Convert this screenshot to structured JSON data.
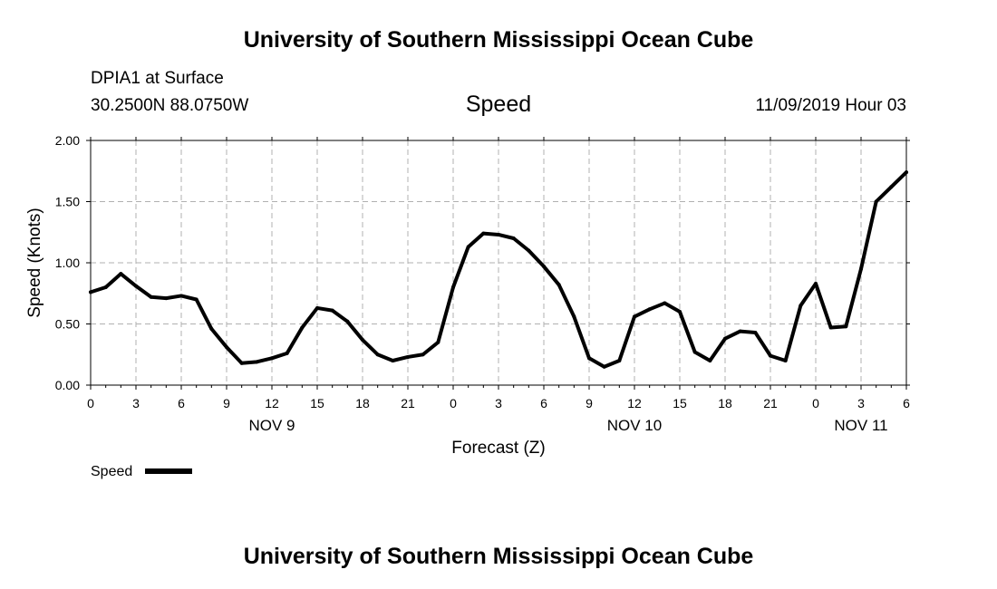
{
  "header": {
    "title": "University of Southern Mississippi Ocean Cube",
    "station": "DPIA1 at Surface",
    "coordinates": "30.2500N 88.0750W",
    "datetime": "11/09/2019 Hour 03"
  },
  "footer": {
    "title": "University of Southern Mississippi Ocean Cube"
  },
  "chart_data": {
    "type": "line",
    "title": "Speed",
    "xlabel": "Forecast (Z)",
    "ylabel": "Speed (Knots)",
    "xlim": [
      0,
      54
    ],
    "ylim": [
      0,
      2
    ],
    "grid": true,
    "x_ticks": [
      {
        "x": 0,
        "label": "0"
      },
      {
        "x": 3,
        "label": "3"
      },
      {
        "x": 6,
        "label": "6"
      },
      {
        "x": 9,
        "label": "9"
      },
      {
        "x": 12,
        "label": "12"
      },
      {
        "x": 15,
        "label": "15"
      },
      {
        "x": 18,
        "label": "18"
      },
      {
        "x": 21,
        "label": "21"
      },
      {
        "x": 24,
        "label": "0"
      },
      {
        "x": 27,
        "label": "3"
      },
      {
        "x": 30,
        "label": "6"
      },
      {
        "x": 33,
        "label": "9"
      },
      {
        "x": 36,
        "label": "12"
      },
      {
        "x": 39,
        "label": "15"
      },
      {
        "x": 42,
        "label": "18"
      },
      {
        "x": 45,
        "label": "21"
      },
      {
        "x": 48,
        "label": "0"
      },
      {
        "x": 51,
        "label": "3"
      },
      {
        "x": 54,
        "label": "6"
      }
    ],
    "y_ticks": [
      {
        "y": 0,
        "label": "0.00"
      },
      {
        "y": 0.5,
        "label": "0.50"
      },
      {
        "y": 1.0,
        "label": "1.00"
      },
      {
        "y": 1.5,
        "label": "1.50"
      },
      {
        "y": 2.0,
        "label": "2.00"
      }
    ],
    "day_labels": [
      {
        "x": 12,
        "label": "NOV 9"
      },
      {
        "x": 36,
        "label": "NOV 10"
      },
      {
        "x": 51,
        "label": "NOV 11"
      }
    ],
    "legend": {
      "label": "Speed",
      "position": "bottom-left"
    },
    "series": [
      {
        "name": "Speed",
        "color": "#000000",
        "x": [
          0,
          1,
          2,
          3,
          4,
          5,
          6,
          7,
          8,
          9,
          10,
          11,
          12,
          13,
          14,
          15,
          16,
          17,
          18,
          19,
          20,
          21,
          22,
          23,
          24,
          25,
          26,
          27,
          28,
          29,
          30,
          31,
          32,
          33,
          34,
          35,
          36,
          37,
          38,
          39,
          40,
          41,
          42,
          43,
          44,
          45,
          46,
          47,
          48,
          49,
          50,
          51,
          52,
          53,
          54
        ],
        "values": [
          0.76,
          0.8,
          0.91,
          0.81,
          0.72,
          0.71,
          0.73,
          0.7,
          0.46,
          0.31,
          0.18,
          0.19,
          0.22,
          0.26,
          0.47,
          0.63,
          0.61,
          0.52,
          0.37,
          0.25,
          0.2,
          0.23,
          0.25,
          0.35,
          0.8,
          1.13,
          1.24,
          1.23,
          1.2,
          1.1,
          0.97,
          0.82,
          0.56,
          0.22,
          0.15,
          0.2,
          0.56,
          0.62,
          0.67,
          0.6,
          0.27,
          0.2,
          0.38,
          0.44,
          0.43,
          0.24,
          0.2,
          0.65,
          0.83,
          0.47,
          0.48,
          0.95,
          1.5,
          1.62,
          1.74
        ]
      }
    ]
  }
}
